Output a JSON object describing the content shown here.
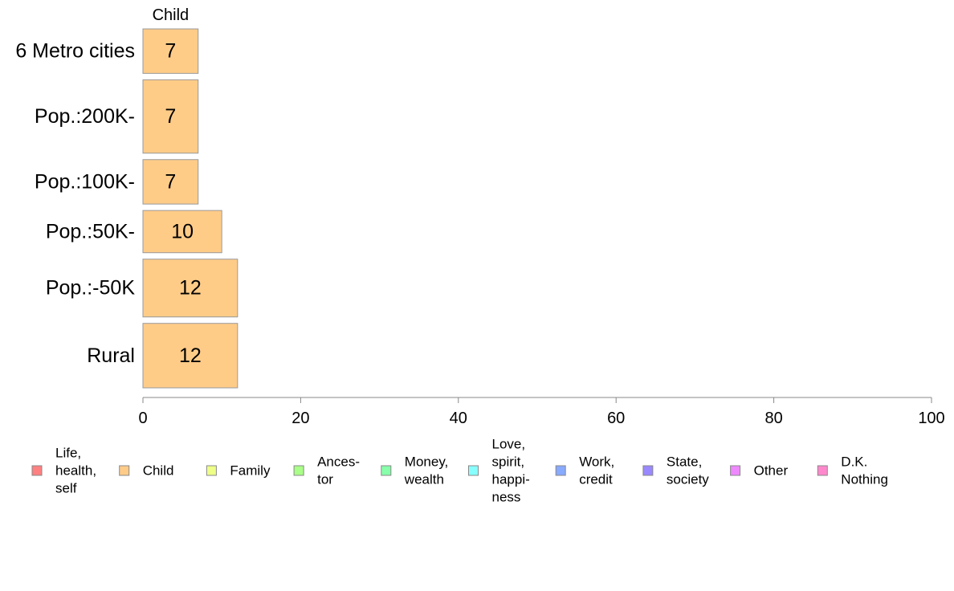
{
  "chart_data": {
    "type": "bar",
    "orientation": "horizontal",
    "stacked": true,
    "series_title": "Child",
    "categories": [
      "6 Metro cities",
      "Pop.:200K-",
      "Pop.:100K-",
      "Pop.:50K-",
      "Pop.:-50K",
      "Rural"
    ],
    "category_weights": [
      1.0,
      1.65,
      1.0,
      0.95,
      1.3,
      1.45
    ],
    "series": [
      {
        "name": "Child",
        "values": [
          7,
          7,
          7,
          10,
          12,
          12
        ],
        "color": "#FFCC88"
      }
    ],
    "xlim": [
      0,
      100
    ],
    "xticks": [
      0,
      20,
      40,
      60,
      80,
      100
    ],
    "grid": false,
    "legend_position": "bottom",
    "legend": [
      {
        "lines": [
          "Life,",
          "health,",
          "self"
        ],
        "color": "#FF8080"
      },
      {
        "lines": [
          "Child"
        ],
        "color": "#FFCC88"
      },
      {
        "lines": [
          "Family"
        ],
        "color": "#EEFF88"
      },
      {
        "lines": [
          "Ances-",
          "tor"
        ],
        "color": "#AAFF88"
      },
      {
        "lines": [
          "Money,",
          "wealth"
        ],
        "color": "#88FFAA"
      },
      {
        "lines": [
          "Love,",
          "spirit,",
          "happi-",
          "ness"
        ],
        "color": "#88FFFF"
      },
      {
        "lines": [
          "Work,",
          "credit"
        ],
        "color": "#88AAFF"
      },
      {
        "lines": [
          "State,",
          "society"
        ],
        "color": "#9988FF"
      },
      {
        "lines": [
          "Other"
        ],
        "color": "#EE88FF"
      },
      {
        "lines": [
          "D.K.",
          "Nothing"
        ],
        "color": "#FF88CC"
      }
    ]
  }
}
